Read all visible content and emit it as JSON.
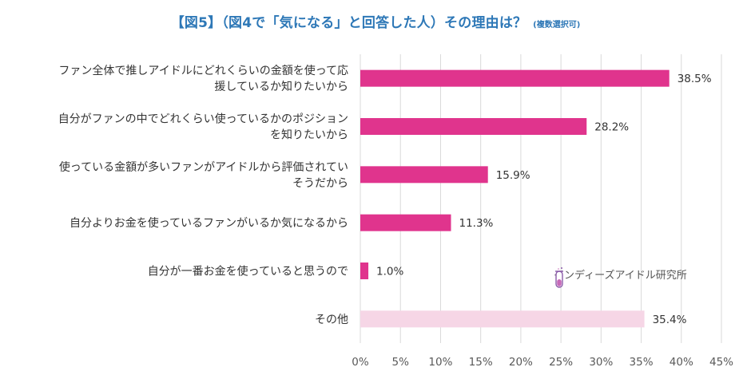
{
  "title": {
    "main": "【図5】（図4で「気になる」と回答した人）その理由は？",
    "note": "(複数選択可)"
  },
  "brand": {
    "name": "インディーズアイドル研究所",
    "icon": "test-tube-icon"
  },
  "colors": {
    "accent": "#e0348d",
    "other": "#f6d6e6",
    "title": "#2e78b7"
  },
  "chart_data": {
    "type": "bar",
    "orientation": "horizontal",
    "title": "【図5】（図4で「気になる」と回答した人）その理由は？ (複数選択可)",
    "categories": [
      [
        "ファン全体で推しアイドルにどれくらいの金額を使って応",
        "援しているか知りたいから"
      ],
      [
        "自分がファンの中でどれくらい使っているかのポジション",
        "を知りたいから"
      ],
      [
        "使っている金額が多いファンがアイドルから評価されてい",
        "そうだから"
      ],
      [
        "自分よりお金を使っているファンがいるか気になるから"
      ],
      [
        "自分が一番お金を使っていると思うので"
      ],
      [
        "その他"
      ]
    ],
    "values": [
      38.5,
      28.2,
      15.9,
      11.3,
      1.0,
      35.4
    ],
    "value_labels": [
      "38.5%",
      "28.2%",
      "15.9%",
      "11.3%",
      "1.0%",
      "35.4%"
    ],
    "bar_colors": [
      "#e0348d",
      "#e0348d",
      "#e0348d",
      "#e0348d",
      "#e0348d",
      "#f6d6e6"
    ],
    "xlim": [
      0,
      45
    ],
    "xticks": [
      "0%",
      "5%",
      "10%",
      "15%",
      "20%",
      "25%",
      "30%",
      "35%",
      "40%",
      "45%"
    ],
    "grid": true,
    "legend": "none"
  }
}
